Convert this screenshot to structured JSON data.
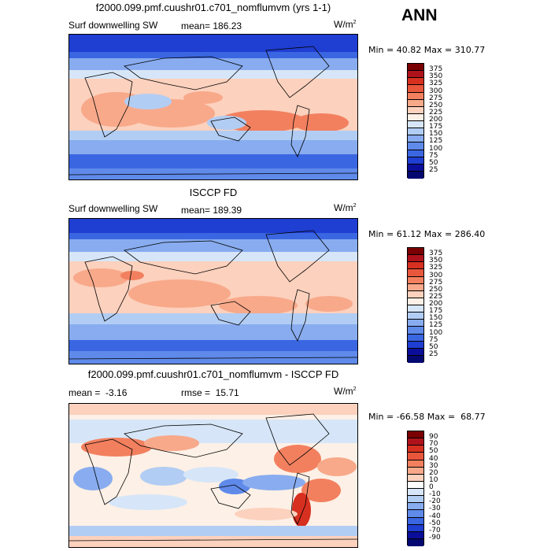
{
  "season": "ANN",
  "panels": [
    {
      "title": "f2000.099.pmf.cuushr01.c701_nomflumvm (yrs 1-1)",
      "left_label": "Surf downwelling SW",
      "stat_label": "mean=",
      "stat_value": "186.23",
      "units": "W/m",
      "units_exp": "2",
      "min_label": "Min =",
      "min_value": "40.82",
      "max_label": "Max =",
      "max_value": "310.77",
      "colorbar_levels": [
        "375",
        "350",
        "325",
        "300",
        "275",
        "250",
        "225",
        "200",
        "175",
        "150",
        "125",
        "100",
        "75",
        "50",
        "25"
      ]
    },
    {
      "title": "ISCCP FD",
      "left_label": "Surf downwelling SW",
      "stat_label": "mean=",
      "stat_value": "189.39",
      "units": "W/m",
      "units_exp": "2",
      "min_label": "Min =",
      "min_value": "61.12",
      "max_label": "Max =",
      "max_value": "286.40",
      "colorbar_levels": [
        "375",
        "350",
        "325",
        "300",
        "275",
        "250",
        "225",
        "200",
        "175",
        "150",
        "125",
        "100",
        "75",
        "50",
        "25"
      ]
    },
    {
      "title": "f2000.099.pmf.cuushr01.c701_nomflumvm - ISCCP FD",
      "mean_label": "mean =",
      "mean_value": "-3.16",
      "rmse_label": "rmse =",
      "rmse_value": "15.71",
      "units": "W/m",
      "units_exp": "2",
      "min_label": "Min =",
      "min_value": "-66.58",
      "max_label": "Max =",
      "max_value": "68.77",
      "colorbar_levels": [
        "90",
        "70",
        "50",
        "40",
        "30",
        "20",
        "10",
        "0",
        "-10",
        "-20",
        "-30",
        "-40",
        "-50",
        "-70",
        "-90"
      ]
    }
  ],
  "colors": {
    "abs_scale": [
      "#7a0000",
      "#b0121b",
      "#d73020",
      "#e8563c",
      "#f2805f",
      "#f8a98a",
      "#fcd1bd",
      "#fdf0e6",
      "#d6e6f8",
      "#b2cdf3",
      "#88acef",
      "#5f8aea",
      "#3b66e2",
      "#1f3ed2",
      "#0b0e9a",
      "#040870"
    ],
    "diff_scale": [
      "#7a0000",
      "#b0121b",
      "#d73020",
      "#e8563c",
      "#f2805f",
      "#f8a98a",
      "#fcd1bd",
      "#ffffff",
      "#d6e6f8",
      "#b2cdf3",
      "#88acef",
      "#5f8aea",
      "#3b66e2",
      "#1f3ed2",
      "#0b0e9a",
      "#040870"
    ]
  }
}
